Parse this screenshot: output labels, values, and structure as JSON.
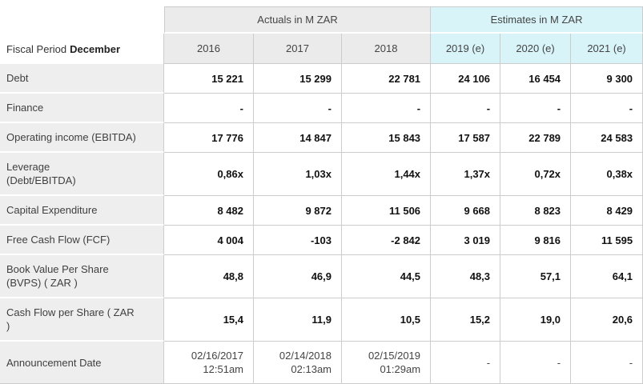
{
  "chart_data": {
    "type": "table",
    "title_groups": [
      {
        "label": "Actuals in M ZAR",
        "span": 3,
        "kind": "actual"
      },
      {
        "label": "Estimates in M ZAR",
        "span": 3,
        "kind": "estimate"
      }
    ],
    "corner": {
      "label": "Fiscal Period",
      "value": "December"
    },
    "columns": [
      {
        "label": "2016",
        "kind": "actual"
      },
      {
        "label": "2017",
        "kind": "actual"
      },
      {
        "label": "2018",
        "kind": "actual"
      },
      {
        "label": "2019 (e)",
        "kind": "estimate"
      },
      {
        "label": "2020 (e)",
        "kind": "estimate"
      },
      {
        "label": "2021 (e)",
        "kind": "estimate"
      }
    ],
    "rows": [
      {
        "label": "Debt",
        "bold": true,
        "values": [
          "15 221",
          "15 299",
          "22 781",
          "24 106",
          "16 454",
          "9 300"
        ]
      },
      {
        "label": "Finance",
        "bold": true,
        "values": [
          "-",
          "-",
          "-",
          "-",
          "-",
          "-"
        ]
      },
      {
        "label": "Operating income (EBITDA)",
        "bold": true,
        "values": [
          "17 776",
          "14 847",
          "15 843",
          "17 587",
          "22 789",
          "24 583"
        ]
      },
      {
        "label": "Leverage\n(Debt/EBITDA)",
        "bold": true,
        "values": [
          "0,86x",
          "1,03x",
          "1,44x",
          "1,37x",
          "0,72x",
          "0,38x"
        ]
      },
      {
        "label": "Capital Expenditure",
        "bold": true,
        "values": [
          "8 482",
          "9 872",
          "11 506",
          "9 668",
          "8 823",
          "8 429"
        ]
      },
      {
        "label": "Free Cash Flow (FCF)",
        "bold": true,
        "values": [
          "4 004",
          "-103",
          "-2 842",
          "3 019",
          "9 816",
          "11 595"
        ]
      },
      {
        "label": "Book Value Per Share\n(BVPS) ( ZAR )",
        "bold": true,
        "values": [
          "48,8",
          "46,9",
          "44,5",
          "48,3",
          "57,1",
          "64,1"
        ]
      },
      {
        "label": "Cash Flow per Share ( ZAR\n)",
        "bold": true,
        "values": [
          "15,4",
          "11,9",
          "10,5",
          "15,2",
          "19,0",
          "20,6"
        ]
      },
      {
        "label": "Announcement Date",
        "bold": false,
        "values": [
          "02/16/2017\n12:51am",
          "02/14/2018\n02:13am",
          "02/15/2019\n01:29am",
          "-",
          "-",
          "-"
        ]
      }
    ]
  },
  "colors": {
    "estimate_header_bg": "#d8f4f9",
    "actual_header_bg": "#ebebeb",
    "row_label_bg": "#eeeeee",
    "grid_border": "#cccccc",
    "header_text": "#444444",
    "value_text": "#111111",
    "white_separator": "#ffffff"
  }
}
